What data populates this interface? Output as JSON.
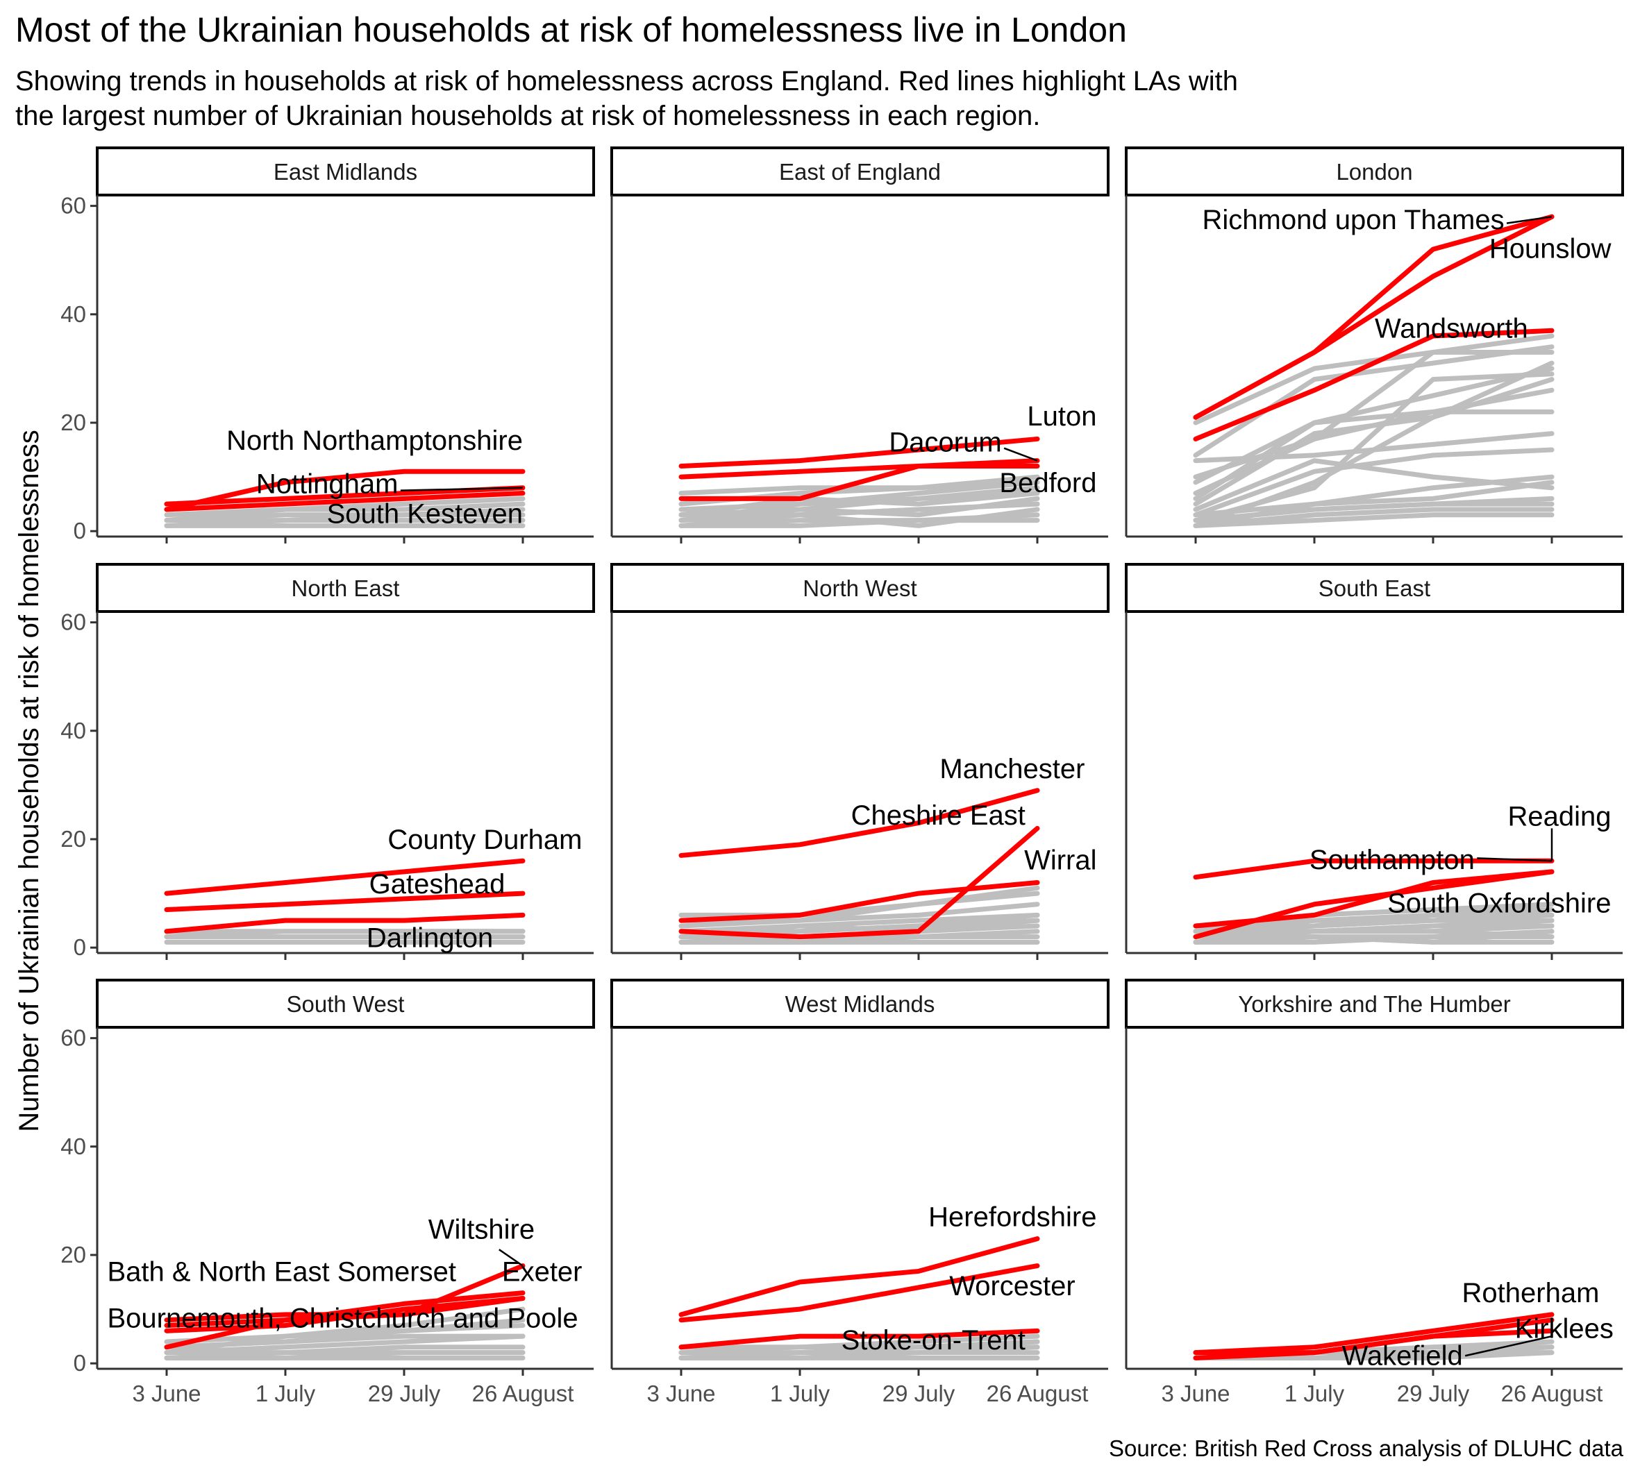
{
  "title": "Most of the Ukrainian households at risk of homelessness live in London",
  "subtitle": "Showing trends in households at risk of homelessness across England. Red lines highlight LAs with\nthe largest number of Ukrainian households at risk of homelessness in each region.",
  "caption": "Source: British Red Cross analysis of DLUHC data",
  "colors": {
    "highlight": "#ff0000",
    "background_series": "#bebebe",
    "strip_border": "#000000",
    "axis": "#333333"
  },
  "chart_data": {
    "type": "line",
    "layout": "facet_wrap 3x3",
    "ylabel": "Number of Ukrainian households at risk of homelessness",
    "xlabel": "",
    "x": [
      "3 June",
      "1 July",
      "29 July",
      "26 August"
    ],
    "yticks": [
      0,
      20,
      40,
      60
    ],
    "ylim": [
      -1,
      62
    ],
    "grid": false,
    "panels": [
      {
        "name": "East Midlands",
        "highlight": [
          {
            "name": "North Northamptonshire",
            "values": [
              4,
              9,
              11,
              11
            ]
          },
          {
            "name": "Nottingham",
            "values": [
              5,
              6,
              7,
              8
            ]
          },
          {
            "name": "South Kesteven",
            "values": [
              4,
              5,
              6,
              7
            ]
          }
        ],
        "labels": [
          {
            "text": "North Northamptonshire",
            "x": 3,
            "y": 15,
            "anchor": "end"
          },
          {
            "text": "Nottingham",
            "x": 1.95,
            "y": 7,
            "anchor": "end",
            "leader": {
              "x1": 1.97,
              "y1": 7.5,
              "x2": 3,
              "y2": 8
            }
          },
          {
            "text": "South Kesteven",
            "x": 3,
            "y": 1.5,
            "anchor": "end"
          }
        ],
        "others": [
          [
            1,
            1,
            1,
            1
          ],
          [
            2,
            3,
            3,
            4
          ],
          [
            2,
            2,
            3,
            3
          ],
          [
            1,
            2,
            2,
            2
          ],
          [
            3,
            4,
            5,
            6
          ],
          [
            2,
            4,
            4,
            5
          ]
        ]
      },
      {
        "name": "East of England",
        "highlight": [
          {
            "name": "Luton",
            "values": [
              12,
              13,
              15,
              17
            ]
          },
          {
            "name": "Dacorum",
            "values": [
              10,
              11,
              12,
              13
            ]
          },
          {
            "name": "Bedford",
            "values": [
              6,
              6,
              12,
              12
            ]
          }
        ],
        "labels": [
          {
            "text": "Luton",
            "x": 3.5,
            "y": 19.5,
            "anchor": "end"
          },
          {
            "text": "Dacorum",
            "x": 2.7,
            "y": 14.7,
            "anchor": "end",
            "leader": {
              "x1": 2.72,
              "y1": 15.3,
              "x2": 3,
              "y2": 13
            }
          },
          {
            "text": "Bedford",
            "x": 3.5,
            "y": 7.2,
            "anchor": "end"
          }
        ],
        "others": [
          [
            1,
            3,
            4,
            5
          ],
          [
            2,
            5,
            6,
            7
          ],
          [
            3,
            4,
            6,
            8
          ],
          [
            1,
            2,
            2,
            3
          ],
          [
            4,
            5,
            7,
            9
          ],
          [
            2,
            3,
            1,
            4
          ],
          [
            3,
            6,
            5,
            7
          ],
          [
            1,
            1,
            2,
            2
          ],
          [
            5,
            7,
            8,
            9
          ],
          [
            2,
            4,
            3,
            6
          ],
          [
            7,
            8,
            8,
            10
          ],
          [
            3,
            3,
            4,
            5
          ]
        ]
      },
      {
        "name": "London",
        "highlight": [
          {
            "name": "Richmond upon Thames",
            "values": [
              21,
              33,
              52,
              58
            ]
          },
          {
            "name": "Hounslow",
            "values": [
              21,
              33,
              47,
              58
            ]
          },
          {
            "name": "Wandsworth",
            "values": [
              17,
              26,
              36,
              37
            ]
          }
        ],
        "labels": [
          {
            "text": "Richmond upon Thames",
            "x": 2.6,
            "y": 55.7,
            "anchor": "end",
            "leader": {
              "x1": 2.62,
              "y1": 56.8,
              "x2": 3,
              "y2": 58
            }
          },
          {
            "text": "Hounslow",
            "x": 3.5,
            "y": 50.4,
            "anchor": "end"
          },
          {
            "text": "Wandsworth",
            "x": 2.8,
            "y": 35.7,
            "anchor": "end"
          }
        ],
        "others": [
          [
            20,
            30,
            33,
            36
          ],
          [
            14,
            28,
            31,
            34
          ],
          [
            9,
            20,
            22,
            22
          ],
          [
            5,
            18,
            21,
            31
          ],
          [
            13,
            14,
            16,
            18
          ],
          [
            3,
            11,
            14,
            15
          ],
          [
            2,
            8,
            28,
            29
          ],
          [
            1,
            9,
            21,
            28
          ],
          [
            10,
            17,
            33,
            33
          ],
          [
            6,
            20,
            25,
            30
          ],
          [
            4,
            13,
            10,
            8
          ],
          [
            7,
            17,
            22,
            26
          ],
          [
            1,
            5,
            8,
            10
          ],
          [
            2,
            4,
            5,
            6
          ],
          [
            1,
            3,
            4,
            4
          ],
          [
            3,
            5,
            6,
            9
          ],
          [
            2,
            4,
            5,
            5
          ],
          [
            1,
            2,
            3,
            3
          ]
        ]
      },
      {
        "name": "North East",
        "highlight": [
          {
            "name": "County Durham",
            "values": [
              10,
              12,
              14,
              16
            ]
          },
          {
            "name": "Gateshead",
            "values": [
              7,
              8,
              9,
              10
            ]
          },
          {
            "name": "Darlington",
            "values": [
              3,
              5,
              5,
              6
            ]
          }
        ],
        "labels": [
          {
            "text": "County Durham",
            "x": 3.5,
            "y": 18.2,
            "anchor": "end"
          },
          {
            "text": "Gateshead",
            "x": 2.85,
            "y": 10,
            "anchor": "end"
          },
          {
            "text": "Darlington",
            "x": 2.75,
            "y": 0.1,
            "anchor": "end"
          }
        ],
        "others": [
          [
            3,
            3,
            3,
            3
          ],
          [
            2,
            2,
            2,
            2
          ],
          [
            1,
            1,
            1,
            1
          ],
          [
            2,
            3,
            3,
            3
          ]
        ]
      },
      {
        "name": "North West",
        "highlight": [
          {
            "name": "Manchester",
            "values": [
              17,
              19,
              23,
              29
            ]
          },
          {
            "name": "Cheshire East",
            "values": [
              5,
              6,
              10,
              12
            ]
          },
          {
            "name": "Wirral",
            "values": [
              3,
              2,
              3,
              22
            ]
          }
        ],
        "labels": [
          {
            "text": "Manchester",
            "x": 3.4,
            "y": 31.3,
            "anchor": "end"
          },
          {
            "text": "Cheshire East",
            "x": 2.9,
            "y": 22.7,
            "anchor": "end"
          },
          {
            "text": "Wirral",
            "x": 3.5,
            "y": 14.4,
            "anchor": "end"
          }
        ],
        "others": [
          [
            6,
            6,
            8,
            11
          ],
          [
            3,
            4,
            5,
            6
          ],
          [
            2,
            3,
            4,
            5
          ],
          [
            1,
            1,
            2,
            3
          ],
          [
            4,
            5,
            8,
            10
          ],
          [
            2,
            2,
            3,
            4
          ],
          [
            1,
            2,
            2,
            2
          ],
          [
            5,
            5,
            6,
            8
          ],
          [
            3,
            3,
            4,
            6
          ],
          [
            2,
            4,
            3,
            5
          ],
          [
            1,
            1,
            1,
            1
          ]
        ]
      },
      {
        "name": "South East",
        "highlight": [
          {
            "name": "Reading",
            "values": [
              13,
              16,
              16,
              16
            ]
          },
          {
            "name": "Southampton",
            "values": [
              4,
              6,
              12,
              14
            ]
          },
          {
            "name": "South Oxfordshire",
            "values": [
              2,
              8,
              11,
              14
            ]
          }
        ],
        "labels": [
          {
            "text": "Reading",
            "x": 3.5,
            "y": 22.5,
            "anchor": "end"
          },
          {
            "text": "Southampton",
            "x": 2.35,
            "y": 14.5,
            "anchor": "end",
            "leader": {
              "x1": 2.37,
              "y1": 16.5,
              "x2": 3,
              "y2": 16
            },
            "leader2": {
              "x1": 3,
              "y1": 16,
              "x2": 3,
              "y2": 22
            }
          },
          {
            "text": "South Oxfordshire",
            "x": 3.5,
            "y": 6.5,
            "anchor": "end"
          }
        ],
        "others": [
          [
            4,
            5,
            6,
            8
          ],
          [
            3,
            4,
            5,
            7
          ],
          [
            2,
            3,
            4,
            5
          ],
          [
            1,
            2,
            2,
            3
          ],
          [
            4,
            6,
            7,
            8
          ],
          [
            3,
            5,
            6,
            6
          ],
          [
            2,
            2,
            1,
            3
          ],
          [
            1,
            1,
            2,
            2
          ],
          [
            4,
            5,
            5,
            5
          ],
          [
            3,
            3,
            4,
            4
          ],
          [
            2,
            4,
            5,
            6
          ],
          [
            1,
            3,
            3,
            4
          ],
          [
            4,
            4,
            6,
            7
          ],
          [
            2,
            3,
            3,
            2
          ],
          [
            1,
            2,
            1,
            1
          ]
        ]
      },
      {
        "name": "South West",
        "highlight": [
          {
            "name": "Wiltshire",
            "values": [
              8,
              9,
              9,
              18
            ]
          },
          {
            "name": "Exeter",
            "values": [
              7,
              8,
              11,
              13
            ]
          },
          {
            "name": "Bath & North East Somerset",
            "values": [
              6,
              7,
              10,
              12
            ]
          },
          {
            "name": "Bournemouth, Christchurch and Poole",
            "values": [
              3,
              8,
              9,
              12
            ]
          }
        ],
        "labels": [
          {
            "text": "Wiltshire",
            "x": 3.1,
            "y": 23,
            "anchor": "end",
            "leader": {
              "x1": 2.8,
              "y1": 21,
              "x2": 3,
              "y2": 18
            }
          },
          {
            "text": "Exeter",
            "x": 3.5,
            "y": 15.2,
            "anchor": "end"
          },
          {
            "text": "Bath & North East Somerset",
            "x": -0.5,
            "y": 15.2,
            "anchor": "start"
          },
          {
            "text": "Bournemouth, Christchurch and Poole",
            "x": -0.5,
            "y": 6.6,
            "anchor": "start"
          }
        ],
        "others": [
          [
            1,
            1,
            2,
            2
          ],
          [
            2,
            3,
            4,
            5
          ],
          [
            3,
            4,
            6,
            8
          ],
          [
            1,
            2,
            3,
            3
          ],
          [
            2,
            2,
            2,
            2
          ],
          [
            4,
            5,
            6,
            7
          ],
          [
            1,
            1,
            1,
            1
          ],
          [
            3,
            4,
            5,
            5
          ],
          [
            2,
            5,
            7,
            10
          ]
        ]
      },
      {
        "name": "West Midlands",
        "highlight": [
          {
            "name": "Herefordshire",
            "values": [
              9,
              15,
              17,
              23
            ]
          },
          {
            "name": "Worcester",
            "values": [
              8,
              10,
              14,
              18
            ]
          },
          {
            "name": "Stoke-on-Trent",
            "values": [
              3,
              5,
              5,
              6
            ]
          }
        ],
        "labels": [
          {
            "text": "Herefordshire",
            "x": 3.5,
            "y": 25.3,
            "anchor": "end"
          },
          {
            "text": "Worcester",
            "x": 3.32,
            "y": 12.6,
            "anchor": "end"
          },
          {
            "text": "Stoke-on-Trent",
            "x": 2.9,
            "y": 2.6,
            "anchor": "end"
          }
        ],
        "others": [
          [
            1,
            1,
            2,
            3
          ],
          [
            2,
            2,
            3,
            4
          ],
          [
            1,
            2,
            2,
            2
          ],
          [
            3,
            3,
            4,
            5
          ],
          [
            1,
            1,
            1,
            1
          ],
          [
            2,
            3,
            3,
            4
          ],
          [
            1,
            2,
            3,
            3
          ]
        ]
      },
      {
        "name": "Yorkshire and The Humber",
        "highlight": [
          {
            "name": "Rotherham",
            "values": [
              2,
              3,
              6,
              9
            ]
          },
          {
            "name": "Kirklees",
            "values": [
              2,
              2,
              5,
              8
            ]
          },
          {
            "name": "Wakefield",
            "values": [
              1,
              2,
              5,
              6
            ]
          }
        ],
        "labels": [
          {
            "text": "Rotherham",
            "x": 3.4,
            "y": 11.3,
            "anchor": "end"
          },
          {
            "text": "Kirklees",
            "x": 3.52,
            "y": 4.7,
            "anchor": "end"
          },
          {
            "text": "Wakefield",
            "x": 2.25,
            "y": -0.3,
            "anchor": "end",
            "leader": {
              "x1": 2.27,
              "y1": 1.4,
              "x2": 3,
              "y2": 5
            }
          }
        ],
        "others": [
          [
            1,
            2,
            3,
            4
          ],
          [
            1,
            1,
            2,
            3
          ],
          [
            2,
            2,
            3,
            3
          ],
          [
            1,
            1,
            1,
            2
          ],
          [
            1,
            2,
            2,
            2
          ]
        ]
      }
    ]
  }
}
